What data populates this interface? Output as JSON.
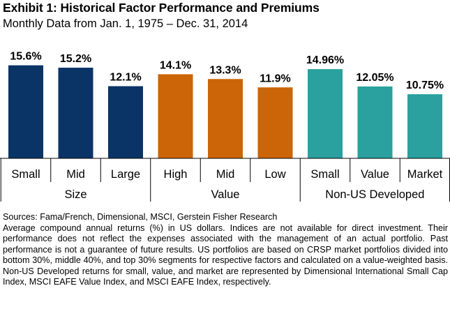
{
  "title": "Exhibit 1: Historical Factor Performance and Premiums",
  "subtitle": "Monthly Data from Jan. 1, 1975 – Dec. 31, 2014",
  "chart_data": {
    "type": "bar",
    "categories": [
      "Small",
      "Mid",
      "Large",
      "High",
      "Mid",
      "Low",
      "Small",
      "Value",
      "Market"
    ],
    "values": [
      15.6,
      15.2,
      12.1,
      14.1,
      13.3,
      11.9,
      14.96,
      12.05,
      10.75
    ],
    "data_labels": [
      "15.6%",
      "15.2%",
      "12.1%",
      "14.1%",
      "13.3%",
      "11.9%",
      "14.96%",
      "12.05%",
      "10.75%"
    ],
    "groups": [
      {
        "label": "Size",
        "categories": [
          "Small",
          "Mid",
          "Large"
        ],
        "color": "#0b3466"
      },
      {
        "label": "Value",
        "categories": [
          "High",
          "Mid",
          "Low"
        ],
        "color": "#cc6508"
      },
      {
        "label": "Non-US Developed",
        "categories": [
          "Small",
          "Value",
          "Market"
        ],
        "color": "#2aa19e"
      }
    ],
    "ylim": [
      0,
      16
    ],
    "grid": false,
    "legend": "none"
  },
  "footnotes": {
    "sources": "Sources: Fama/French, Dimensional, MSCI, Gerstein Fisher Research",
    "note": "Average compound annual returns (%) in US dollars. Indices are not available for direct investment. Their performance does not reflect the expenses associated with the management of an actual portfolio. Past performance is not a guarantee of future results. US portfolios are based on CRSP market portfolios divided into bottom 30%, middle 40%, and top 30% segments for respective factors and calculated on a value-weighted basis. Non-US Developed returns for small, value, and market are represented by Dimensional International Small Cap Index, MSCI EAFE Value Index, and MSCI EAFE Index, respectively."
  }
}
